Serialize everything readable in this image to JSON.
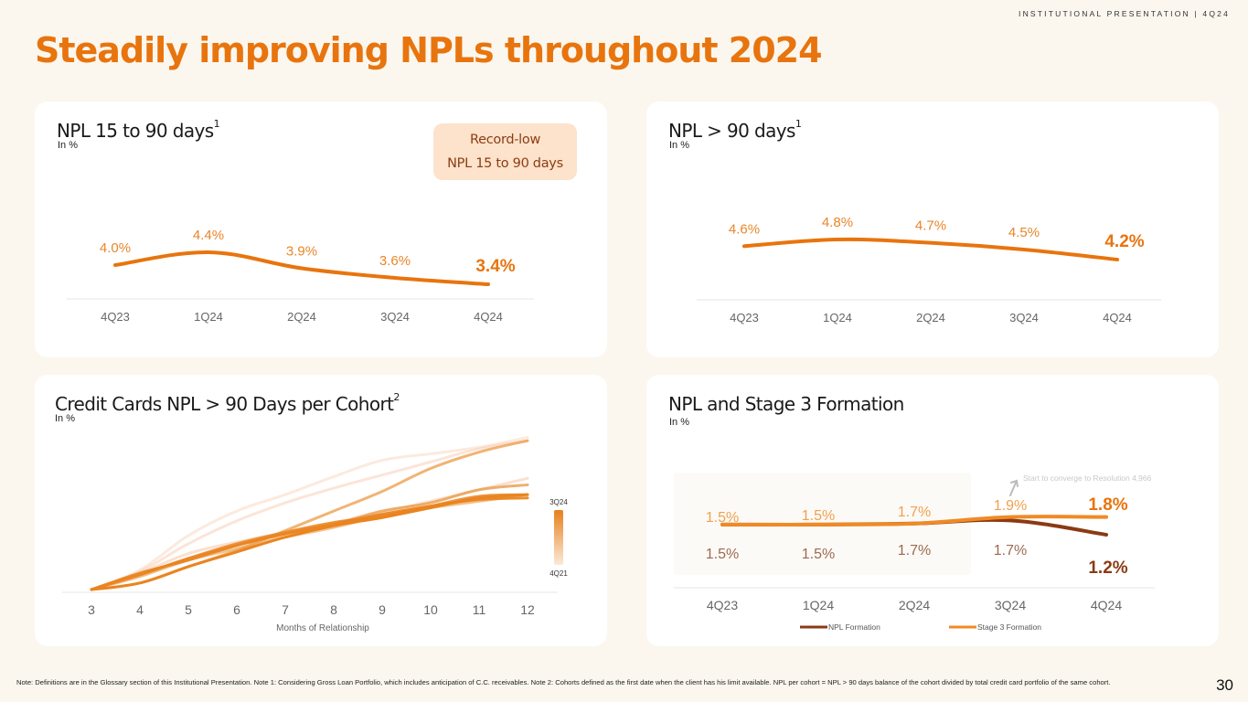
{
  "header": {
    "tag": "INSTITUTIONAL PRESENTATION | 4Q24",
    "title_bold": "Steadily improving",
    "title_regular": " NPLs throughout 2024"
  },
  "colors": {
    "accent": "#e8740e",
    "label_orange": "#e8862a",
    "npl_formation": "#8b3a14",
    "stage3_formation": "#f08a24",
    "badge_bg": "#fde2cc",
    "badge_text": "#8b3e12",
    "background": "#fbf7ee",
    "card": "#ffffff"
  },
  "cards": {
    "npl15": {
      "title": "NPL 15 to 90 days",
      "sup": "1",
      "subtitle": "In %",
      "badge_line1": "Record-low",
      "badge_line2": "NPL 15 to 90 days"
    },
    "npl90": {
      "title": "NPL > 90 days",
      "sup": "1",
      "subtitle": "In %"
    },
    "cohort": {
      "title": "Credit Cards NPL > 90 Days per Cohort",
      "sup": "2",
      "subtitle": "In %"
    },
    "formation": {
      "title": "NPL and Stage 3 Formation",
      "subtitle": "In %"
    }
  },
  "chart_data": [
    {
      "id": "npl15",
      "type": "line",
      "title": "NPL 15 to 90 days",
      "categories": [
        "4Q23",
        "1Q24",
        "2Q24",
        "3Q24",
        "4Q24"
      ],
      "series": [
        {
          "name": "NPL 15 to 90 days",
          "values": [
            4.0,
            4.4,
            3.9,
            3.6,
            3.4
          ]
        }
      ],
      "labels": [
        "4.0%",
        "4.4%",
        "3.9%",
        "3.6%",
        "3.4%"
      ],
      "ylabel": "In %",
      "grid": false
    },
    {
      "id": "npl90",
      "type": "line",
      "title": "NPL > 90 days",
      "categories": [
        "4Q23",
        "1Q24",
        "2Q24",
        "3Q24",
        "4Q24"
      ],
      "series": [
        {
          "name": "NPL > 90 days",
          "values": [
            4.6,
            4.8,
            4.7,
            4.5,
            4.2
          ]
        }
      ],
      "labels": [
        "4.6%",
        "4.8%",
        "4.7%",
        "4.5%",
        "4.2%"
      ],
      "ylabel": "In %",
      "grid": false
    },
    {
      "id": "cohort",
      "type": "line",
      "title": "Credit Cards NPL > 90 Days per Cohort",
      "xlabel": "Months of Relationship",
      "ylabel": "In % (no axis values shown; relative estimates)",
      "x": [
        3,
        4,
        5,
        6,
        7,
        8,
        9,
        10,
        11,
        12
      ],
      "legend": {
        "type": "gradient",
        "top": "3Q24",
        "bottom": "4Q21",
        "placement": "right"
      },
      "series": [
        {
          "name": "cohort-oldest-1",
          "shade": 0.15,
          "values": [
            0,
            12,
            33,
            48,
            58,
            69,
            79,
            83,
            87,
            93
          ]
        },
        {
          "name": "cohort-oldest-2",
          "shade": 0.22,
          "values": [
            0,
            11,
            28,
            42,
            53,
            62,
            70,
            78,
            86,
            91
          ]
        },
        {
          "name": "cohort-old-3",
          "shade": 0.3,
          "values": [
            0,
            10,
            22,
            29,
            35,
            40,
            47,
            54,
            61,
            68
          ]
        },
        {
          "name": "cohort-mid-4",
          "shade": 0.55,
          "values": [
            0,
            8,
            18,
            25,
            32,
            38,
            45,
            50,
            54,
            58
          ]
        },
        {
          "name": "cohort-mid-5",
          "shade": 0.7,
          "values": [
            0,
            4,
            14,
            24,
            36,
            48,
            60,
            74,
            84,
            91
          ]
        },
        {
          "name": "cohort-mid-6",
          "shade": 0.75,
          "values": [
            0,
            9,
            19,
            27,
            34,
            40,
            48,
            53,
            61,
            64
          ]
        },
        {
          "name": "cohort-recent-7",
          "shade": 0.85,
          "values": [
            0,
            9,
            19,
            28,
            35,
            41,
            45,
            51,
            57,
            58
          ]
        },
        {
          "name": "cohort-recent-8",
          "shade": 0.92,
          "values": [
            0,
            10,
            18,
            27,
            34,
            40,
            46,
            51,
            55,
            56
          ]
        },
        {
          "name": "cohort-latest-9",
          "shade": 1.0,
          "values": [
            0,
            4,
            14,
            23,
            32,
            39,
            44,
            50,
            56,
            58
          ]
        }
      ]
    },
    {
      "id": "formation",
      "type": "line",
      "title": "NPL and Stage 3 Formation",
      "categories": [
        "4Q23",
        "1Q24",
        "2Q24",
        "3Q24",
        "4Q24"
      ],
      "series": [
        {
          "name": "NPL Formation",
          "values": [
            1.5,
            1.5,
            1.7,
            1.7,
            1.2
          ],
          "labels": [
            "1.5%",
            "1.5%",
            "1.7%",
            "1.7%",
            "1.2%"
          ]
        },
        {
          "name": "Stage 3 Formation",
          "values": [
            1.5,
            1.5,
            1.7,
            1.9,
            1.8
          ],
          "labels": [
            "1.5%",
            "1.5%",
            "1.7%",
            "1.9%",
            "1.8%"
          ]
        }
      ],
      "annotation": "Start to converge to Resolution 4,966",
      "legend_placement": "bottom",
      "ylabel": "In %"
    }
  ],
  "footnote": "Note: Definitions are in the Glossary section of this Institutional Presentation. Note 1: Considering Gross Loan Portfolio, which includes anticipation of C.C. receivables.  Note 2: Cohorts defined as the first date when the client has his limit available. NPL per cohort = NPL > 90 days balance of the cohort divided by total credit card portfolio of the same cohort.",
  "page_number": "30"
}
